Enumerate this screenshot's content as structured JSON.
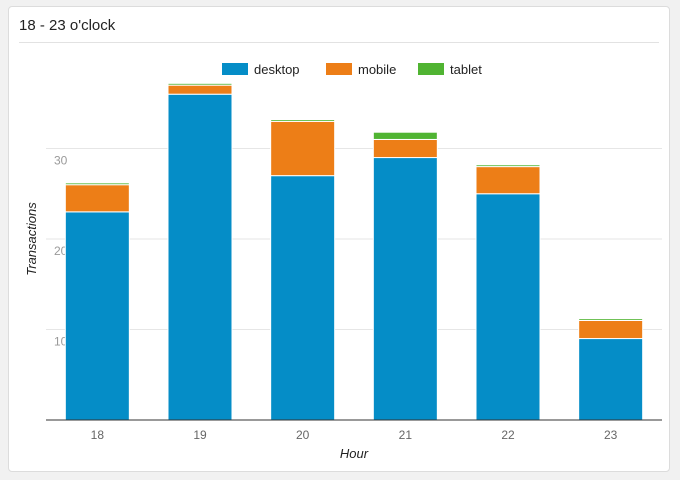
{
  "widget": {
    "title": "18 - 23 o'clock"
  },
  "chart_data": {
    "type": "bar",
    "stacked": true,
    "categories": [
      "18",
      "19",
      "20",
      "21",
      "22",
      "23"
    ],
    "series": [
      {
        "name": "desktop",
        "color": "#058dc7",
        "values": [
          23,
          36,
          27,
          29,
          25,
          9
        ]
      },
      {
        "name": "mobile",
        "color": "#ed7e17",
        "values": [
          3,
          1,
          6,
          2,
          3,
          2
        ]
      },
      {
        "name": "tablet",
        "color": "#50b432",
        "values": [
          0.2,
          0.2,
          0.2,
          0.8,
          0.2,
          0.2
        ]
      }
    ],
    "xlabel": "Hour",
    "ylabel": "Transactions",
    "yticks": [
      10,
      20,
      30
    ],
    "ylim": [
      0,
      40
    ],
    "grid": true,
    "legend": "top"
  }
}
